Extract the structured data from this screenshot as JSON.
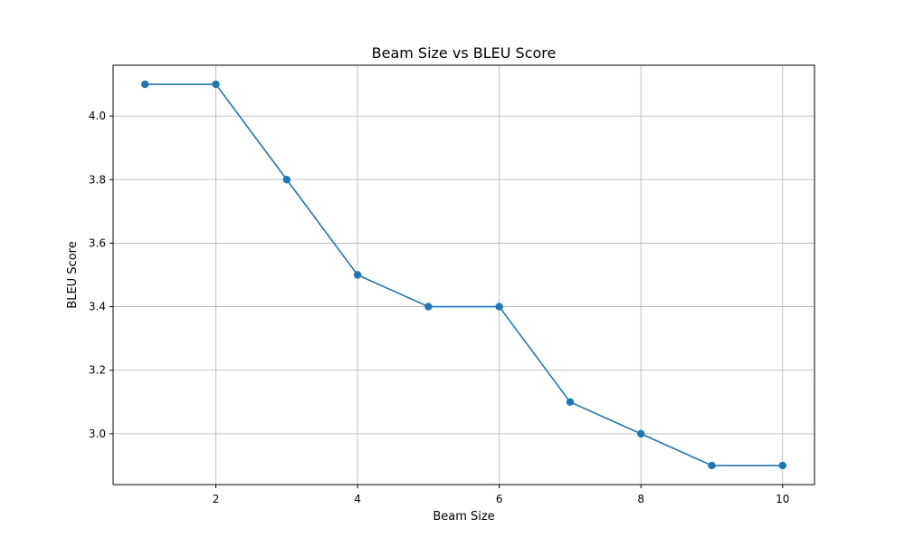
{
  "chart_data": {
    "type": "line",
    "title": "Beam Size vs BLEU Score",
    "xlabel": "Beam Size",
    "ylabel": "BLEU Score",
    "x": [
      1,
      2,
      3,
      4,
      5,
      6,
      7,
      8,
      9,
      10
    ],
    "series": [
      {
        "values": [
          4.1,
          4.1,
          3.8,
          3.5,
          3.4,
          3.4,
          3.1,
          3.0,
          2.9,
          2.9
        ],
        "color": "#1f77b4",
        "marker": "circle"
      }
    ],
    "xlim": [
      0.55,
      10.45
    ],
    "ylim": [
      2.84,
      4.16
    ],
    "xticks": [
      2,
      4,
      6,
      8,
      10
    ],
    "xtick_labels": [
      "2",
      "4",
      "6",
      "8",
      "10"
    ],
    "yticks": [
      3.0,
      3.2,
      3.4,
      3.6,
      3.8,
      4.0
    ],
    "ytick_labels": [
      "3.0",
      "3.2",
      "3.4",
      "3.6",
      "3.8",
      "4.0"
    ],
    "grid": true,
    "legend": "none"
  }
}
